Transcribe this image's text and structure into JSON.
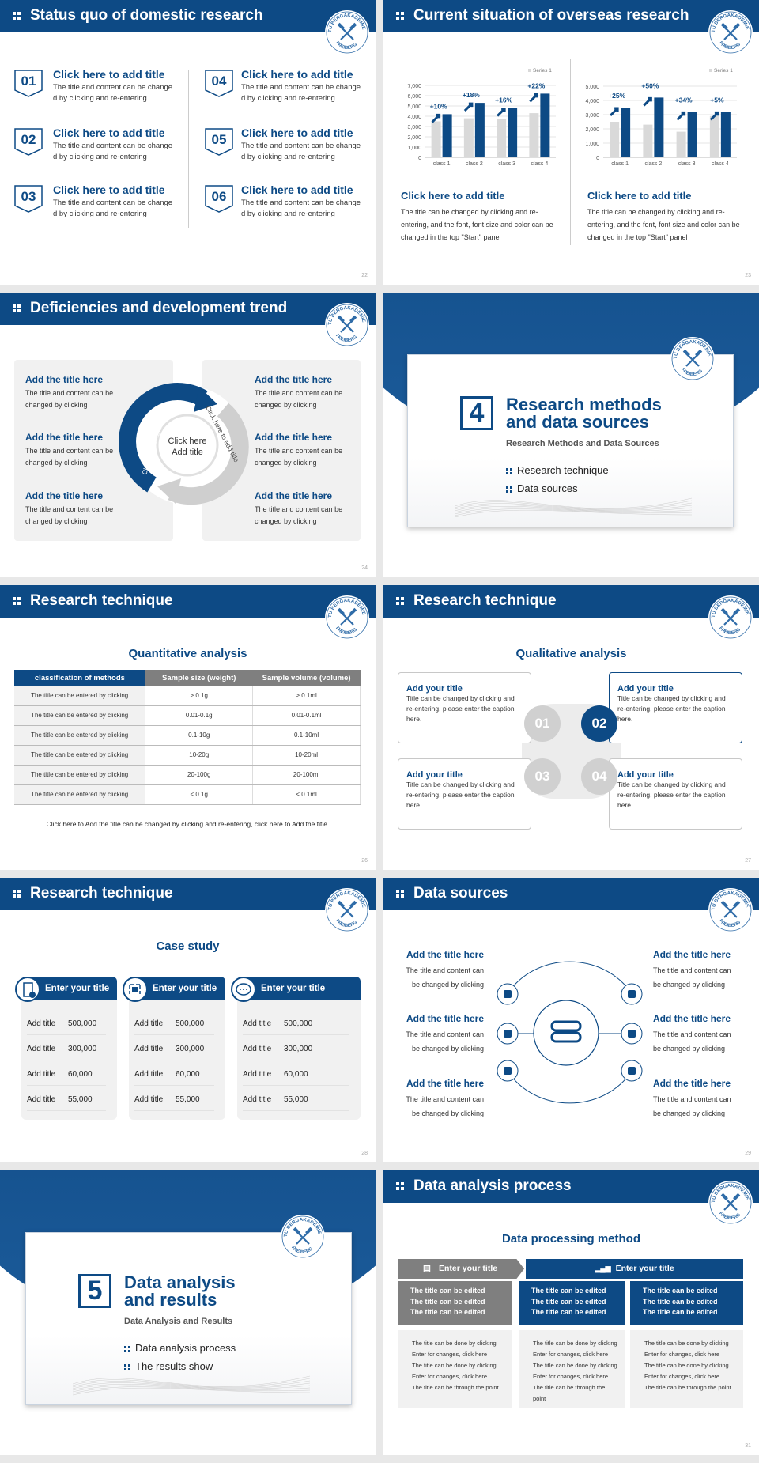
{
  "logo": {
    "top": "TU BERGAKADEMIE",
    "bottom": "FREIBERG"
  },
  "s22": {
    "title": "Status quo of domestic research",
    "page": "22",
    "items": [
      {
        "num": "01",
        "title": "Click here to add title",
        "body": "The title and content can be change d by clicking and re-entering"
      },
      {
        "num": "02",
        "title": "Click here to add title",
        "body": "The title and content can be change d by clicking and re-entering"
      },
      {
        "num": "03",
        "title": "Click here to add title",
        "body": "The title and content can be change d by clicking and re-entering"
      },
      {
        "num": "04",
        "title": "Click here to add title",
        "body": "The title and content can be change d by clicking and re-entering"
      },
      {
        "num": "05",
        "title": "Click here to add title",
        "body": "The title and content can be change d by clicking and re-entering"
      },
      {
        "num": "06",
        "title": "Click here to add title",
        "body": "The title and content can be change d by clicking and re-entering"
      }
    ]
  },
  "s23": {
    "title": "Current situation of overseas research",
    "page": "23",
    "blocks": [
      {
        "title": "Click here to add title",
        "body": "The title can be changed by clicking and re-entering, and the font, font size and color can be changed in the top \"Start\" panel"
      },
      {
        "title": "Click here to add title",
        "body": "The title can be changed by clicking and re-entering, and the font, font size and color can be changed in the top \"Start\" panel"
      }
    ]
  },
  "chart_data": [
    {
      "type": "bar",
      "categories": [
        "class 1",
        "class 2",
        "class 3",
        "class 4"
      ],
      "ylim": [
        0,
        7000
      ],
      "yticks": [
        "0",
        "1,000",
        "2,000",
        "3,000",
        "4,000",
        "5,000",
        "6,000",
        "7,000"
      ],
      "legend": "Series 1",
      "legend_position": "top-right",
      "grid": true,
      "series": [
        {
          "name": "Series 1",
          "color": "#d9d9d9",
          "values": [
            3500,
            3800,
            3700,
            4300
          ]
        },
        {
          "color": "#0d4a85",
          "values": [
            4200,
            5300,
            4800,
            6200
          ]
        }
      ],
      "annotations": [
        "+10%",
        "+18%",
        "+16%",
        "+22%"
      ]
    },
    {
      "type": "bar",
      "categories": [
        "class 1",
        "class 2",
        "class 3",
        "class 4"
      ],
      "ylim": [
        0,
        5000
      ],
      "yticks": [
        "0",
        "1,000",
        "2,000",
        "3,000",
        "4,000",
        "5,000"
      ],
      "legend": "Series 1",
      "legend_position": "top-right",
      "grid": true,
      "series": [
        {
          "name": "Series 1",
          "color": "#d9d9d9",
          "values": [
            2500,
            2300,
            1800,
            2900
          ]
        },
        {
          "color": "#0d4a85",
          "values": [
            3500,
            4200,
            3200,
            3200
          ]
        }
      ],
      "annotations": [
        "+25%",
        "+50%",
        "+34%",
        "+5%"
      ]
    }
  ],
  "s24": {
    "title": "Deficiencies and development trend",
    "page": "24",
    "center": [
      "Click here",
      "Add title"
    ],
    "arc_left": "Click here to add title",
    "arc_right": "Click here to add title",
    "items": [
      {
        "title": "Add the title here",
        "body": "The title and content can be changed by clicking"
      },
      {
        "title": "Add the title here",
        "body": "The title and content can be changed by clicking"
      },
      {
        "title": "Add the title here",
        "body": "The title and content can be changed by clicking"
      },
      {
        "title": "Add the title here",
        "body": "The title and content can be changed by clicking"
      },
      {
        "title": "Add the title here",
        "body": "The title and content can be changed by clicking"
      },
      {
        "title": "Add the title here",
        "body": "The title and content can be changed by clicking"
      }
    ]
  },
  "s25": {
    "number": "4",
    "title_l1": "Research methods",
    "title_l2": "and data sources",
    "subtitle": "Research Methods and Data Sources",
    "bullets": [
      "Research technique",
      "Data sources"
    ],
    "page": "25"
  },
  "s26": {
    "title": "Research technique",
    "heading": "Quantitative analysis",
    "page": "26",
    "headers": [
      "classification of methods",
      "Sample size (weight)",
      "Sample volume (volume)"
    ],
    "rows": [
      [
        "The title can be entered by clicking",
        "> 0.1g",
        "> 0.1ml"
      ],
      [
        "The title can be entered by clicking",
        "0.01-0.1g",
        "0.01-0.1ml"
      ],
      [
        "The title can be entered by clicking",
        "0.1-10g",
        "0.1-10ml"
      ],
      [
        "The title can be entered by clicking",
        "10-20g",
        "10-20ml"
      ],
      [
        "The title can be entered by clicking",
        "20-100g",
        "20-100ml"
      ],
      [
        "The title can be entered by clicking",
        "< 0.1g",
        "< 0.1ml"
      ]
    ],
    "footnote": "Click here to Add the title can be changed by clicking and re-entering, click here to Add the title."
  },
  "s27": {
    "title": "Research technique",
    "heading": "Qualitative analysis",
    "page": "27",
    "nums": [
      "01",
      "02",
      "03",
      "04"
    ],
    "boxes": [
      {
        "title": "Add your title",
        "body": "Title can be changed by clicking and re-entering, please enter the caption here."
      },
      {
        "title": "Add your title",
        "body": "Title can be changed by clicking and re-entering, please enter the caption here."
      },
      {
        "title": "Add your title",
        "body": "Title can be changed by clicking and re-entering, please enter the caption here."
      },
      {
        "title": "Add your title",
        "body": "Title can be changed by clicking and re-entering, please enter the caption here."
      }
    ]
  },
  "s28": {
    "title": "Research technique",
    "heading": "Case study",
    "page": "28",
    "cards": [
      {
        "title": "Enter your title",
        "icon": "phone-user-icon",
        "rows": [
          [
            "Add title",
            "500,000"
          ],
          [
            "Add title",
            "300,000"
          ],
          [
            "Add title",
            "60,000"
          ],
          [
            "Add title",
            "55,000"
          ]
        ]
      },
      {
        "title": "Enter your title",
        "icon": "qr-scan-icon",
        "rows": [
          [
            "Add title",
            "500,000"
          ],
          [
            "Add title",
            "300,000"
          ],
          [
            "Add title",
            "60,000"
          ],
          [
            "Add title",
            "55,000"
          ]
        ]
      },
      {
        "title": "Enter your title",
        "icon": "chat-bubbles-icon",
        "rows": [
          [
            "Add title",
            "500,000"
          ],
          [
            "Add title",
            "300,000"
          ],
          [
            "Add title",
            "60,000"
          ],
          [
            "Add title",
            "55,000"
          ]
        ]
      }
    ]
  },
  "s29": {
    "title": "Data sources",
    "page": "29",
    "icons": [
      "gift-icon",
      "wallet-icon",
      "phone-icon",
      "chat-icon",
      "qr-icon",
      "shop-icon"
    ],
    "items": [
      {
        "title": "Add the title here",
        "body": "The title and content can be changed by clicking"
      },
      {
        "title": "Add the title here",
        "body": "The title and content can be changed by clicking"
      },
      {
        "title": "Add the title here",
        "body": "The title and content can be changed by clicking"
      },
      {
        "title": "Add the title here",
        "body": "The title and content can be changed by clicking"
      },
      {
        "title": "Add the title here",
        "body": "The title and content can be changed by clicking"
      },
      {
        "title": "Add the title here",
        "body": "The title and content can be changed by clicking"
      }
    ]
  },
  "s30": {
    "number": "5",
    "title_l1": "Data analysis",
    "title_l2": "and results",
    "subtitle": "Data Analysis and Results",
    "bullets": [
      "Data analysis process",
      "The results show"
    ],
    "page": "30"
  },
  "s31": {
    "title": "Data analysis process",
    "heading": "Data processing method",
    "page": "31",
    "header_left": "Enter your title",
    "header_right": "Enter your title",
    "cols": [
      {
        "top": [
          "The title can be edited",
          "The title can be edited",
          "The title can be edited"
        ],
        "bottom": [
          "The title can be done by clicking",
          "Enter for changes, click here",
          "The title can be done by clicking",
          "Enter for changes, click here",
          "The title can be through the point"
        ]
      },
      {
        "top": [
          "The title can be edited",
          "The title can be edited",
          "The title can be edited"
        ],
        "bottom": [
          "The title can be done by clicking",
          "Enter for changes, click here",
          "The title can be done by clicking",
          "Enter for changes, click here",
          "The title can be through the point"
        ]
      },
      {
        "top": [
          "The title can be edited",
          "The title can be edited",
          "The title can be edited"
        ],
        "bottom": [
          "The title can be done by clicking",
          "Enter for changes, click here",
          "The title can be done by clicking",
          "Enter for changes, click here",
          "The title can be through the point"
        ]
      }
    ]
  },
  "colors": {
    "brand": "#0d4a85",
    "gray": "#d9d9d9",
    "panel": "#f1f1f1"
  }
}
